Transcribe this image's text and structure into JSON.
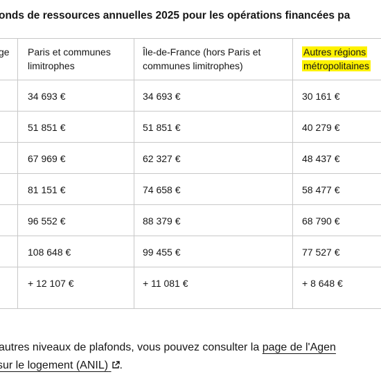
{
  "header": {
    "title": "onds de ressources annuelles 2025 pour les opérations financées pa"
  },
  "table": {
    "headers": [
      "ge",
      "Paris et communes limitrophes",
      "Île-de-France (hors Paris et communes limitrophes)",
      "Autres régions métropolitaines"
    ],
    "rows": [
      [
        "34 693 €",
        "34 693 €",
        "30 161 €"
      ],
      [
        "51 851 €",
        "51 851 €",
        "40 279 €"
      ],
      [
        "67 969 €",
        "62 327 €",
        "48 437 €"
      ],
      [
        "81 151 €",
        "74 658 €",
        "58 477 €"
      ],
      [
        "96 552 €",
        "88 379 €",
        "68 790 €"
      ],
      [
        "108 648 €",
        "99 455 €",
        "77 527 €"
      ],
      [
        "+ 12 107 €",
        "+ 11 081 €",
        "+ 8 648 €"
      ]
    ]
  },
  "footer": {
    "text": "autres niveaux de plafonds, vous pouvez consulter la",
    "link_line1": "page de l'Agen",
    "link_line2": "sur le logement (ANIL)",
    "end": "."
  }
}
